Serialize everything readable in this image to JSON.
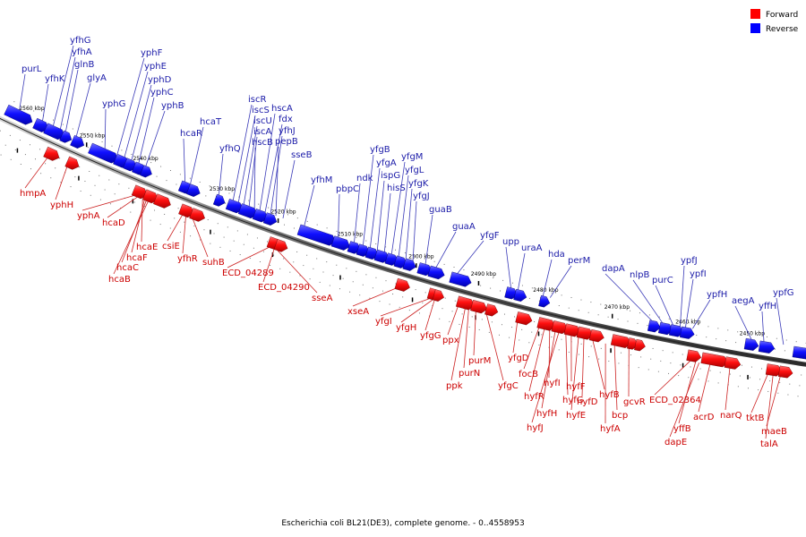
{
  "legend": {
    "forward_label": "Forward",
    "reverse_label": "Reverse",
    "forward_color": "#ff0000",
    "reverse_color": "#0000ff"
  },
  "caption": "Escherichia coli BL21(DE3), complete genome. - 0..4558953",
  "ticks": [
    "2560 kbp",
    "2550 kbp",
    "2540 kbp",
    "2530 kbp",
    "2520 kbp",
    "2510 kbp",
    "2500 kbp",
    "2490 kbp",
    "2480 kbp",
    "2470 kbp",
    "2460 kbp",
    "2450 kbp"
  ],
  "reverse_genes": [
    "purL",
    "yfhK",
    "yfhG",
    "yfhA",
    "glnB",
    "glyA",
    "yphG",
    "yphF",
    "yphE",
    "yphD",
    "yphC",
    "yphB",
    "hcaR",
    "hcaT",
    "yfhQ",
    "iscR",
    "iscS",
    "iscU",
    "iscA",
    "hscB",
    "hscA",
    "fdx",
    "yfhJ",
    "pepB",
    "sseB",
    "yfhM",
    "pbpC",
    "ndk",
    "yfgB",
    "yfgA",
    "ispG",
    "hisS",
    "yfgM",
    "yfgL",
    "yfgK",
    "yfgJ",
    "guaB",
    "guaA",
    "yfgF",
    "upp",
    "uraA",
    "hda",
    "perM",
    "dapA",
    "nlpB",
    "purC",
    "ypfJ",
    "ypfI",
    "ypfH",
    "aegA",
    "yffH",
    "ypfG"
  ],
  "forward_genes": [
    "hmpA",
    "yphH",
    "yphA",
    "hcaD",
    "hcaE",
    "hcaF",
    "hcaC",
    "hcaB",
    "csiE",
    "yfhR",
    "suhB",
    "ECD_04289",
    "ECD_04290",
    "sseA",
    "xseA",
    "yfgI",
    "yfgH",
    "yfgG",
    "ppx",
    "ppk",
    "purN",
    "purM",
    "yfgC",
    "yfgD",
    "focB",
    "hyfR",
    "hyfI",
    "hyfH",
    "hyfJ",
    "hyfG",
    "hyfF",
    "hyfE",
    "hyfD",
    "hyfB",
    "hyfA",
    "bcp",
    "gcvR",
    "ECD_02364",
    "yffB",
    "dapE",
    "acrD",
    "narQ",
    "tktB",
    "talA",
    "maeB"
  ]
}
